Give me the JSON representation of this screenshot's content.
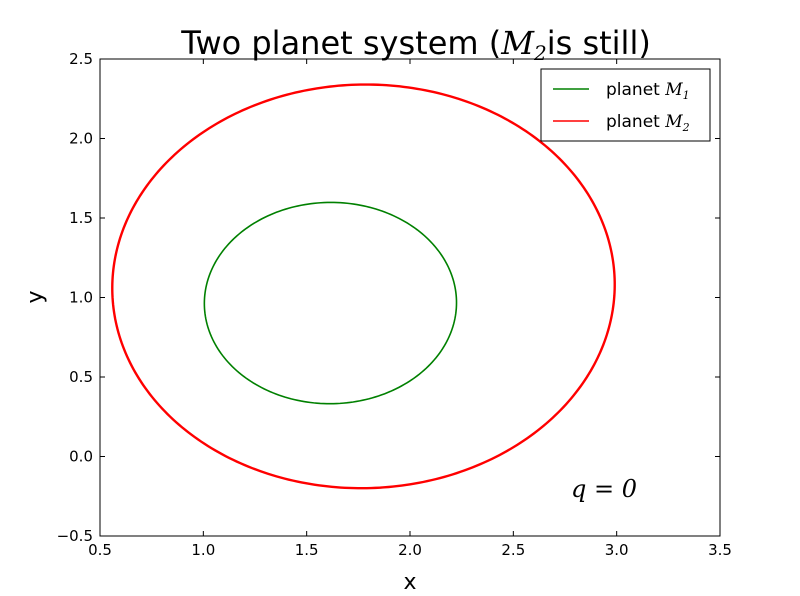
{
  "chart_data": {
    "type": "line",
    "title_prefix": "Two planet system (",
    "title_math": "M",
    "title_math_sub": "2",
    "title_suffix": "is still)",
    "xlabel": "x",
    "ylabel": "y",
    "xlim": [
      0.5,
      3.5
    ],
    "ylim": [
      -0.5,
      2.5
    ],
    "x_ticks": [
      0.5,
      1.0,
      1.5,
      2.0,
      2.5,
      3.0,
      3.5
    ],
    "y_ticks": [
      -0.5,
      0.0,
      0.5,
      1.0,
      1.5,
      2.0,
      2.5
    ],
    "x_tick_labels": [
      "0.5",
      "1.0",
      "1.5",
      "2.0",
      "2.5",
      "3.0",
      "3.5"
    ],
    "y_tick_labels": [
      "−0.5",
      "0.0",
      "0.5",
      "1.0",
      "1.5",
      "2.0",
      "2.5"
    ],
    "grid": false,
    "legend_position": "top-right",
    "annotation": "q = 0",
    "series": [
      {
        "name": "planet M1",
        "legend_prefix": "planet ",
        "legend_math": "M",
        "legend_sub": "1",
        "color": "#008000",
        "orbit": {
          "cx": 1.615,
          "cy": 0.965,
          "rx": 0.61,
          "ry": 0.633,
          "tilt_deg": -3,
          "samples": 240
        }
      },
      {
        "name": "planet M2",
        "legend_prefix": "planet ",
        "legend_math": "M",
        "legend_sub": "2",
        "color": "#ff0000",
        "orbit": {
          "cx": 1.775,
          "cy": 1.07,
          "rx": 1.215,
          "ry": 1.27,
          "tilt_deg": -6,
          "samples": 360
        }
      }
    ]
  }
}
